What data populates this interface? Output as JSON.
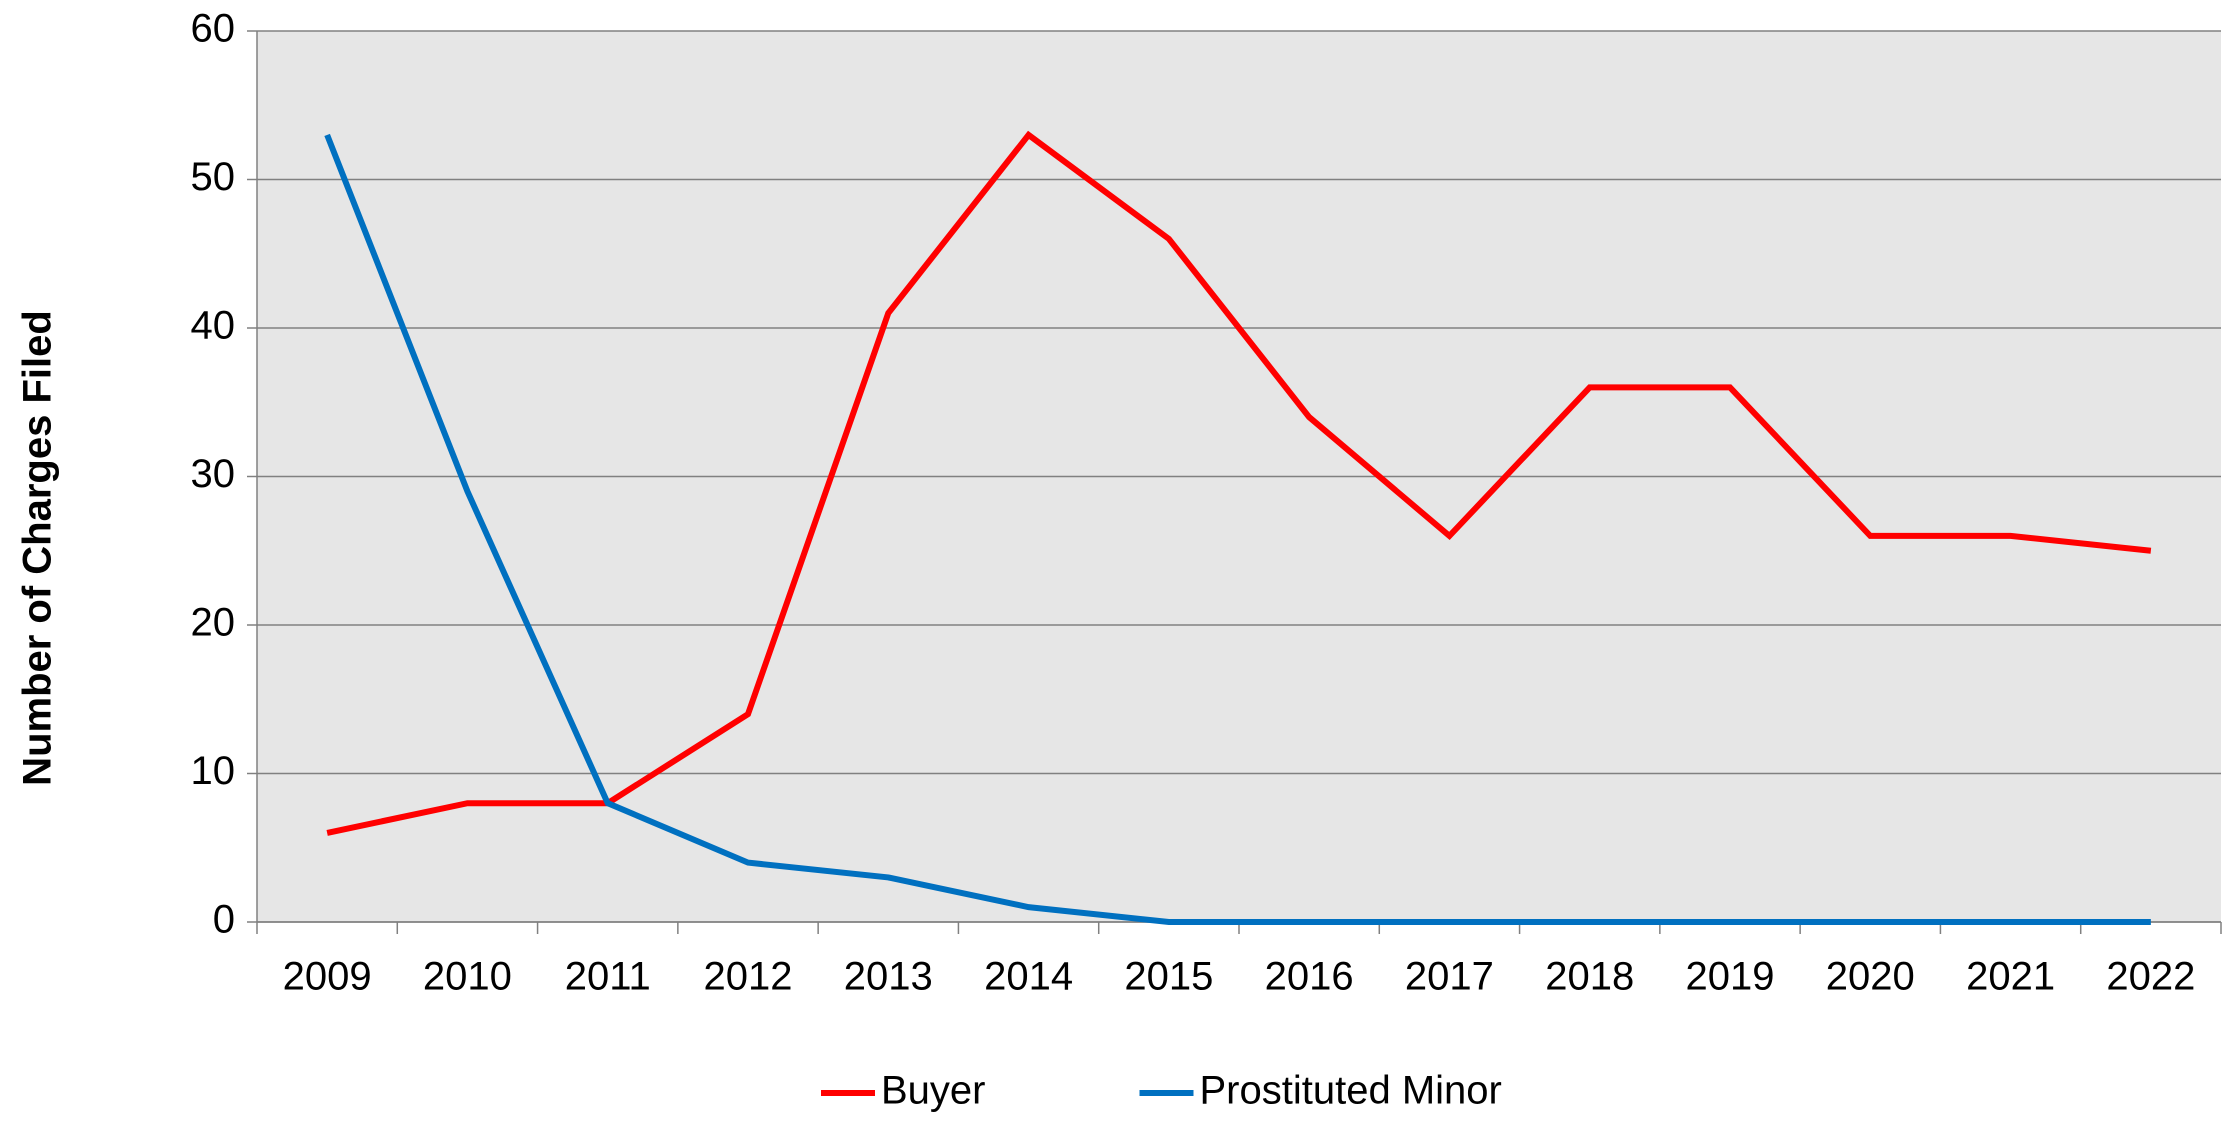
{
  "chart_data": {
    "type": "line",
    "y_label": "Number of Charges Filed",
    "categories": [
      "2009",
      "2010",
      "2011",
      "2012",
      "2013",
      "2014",
      "2015",
      "2016",
      "2017",
      "2018",
      "2019",
      "2020",
      "2021",
      "2022"
    ],
    "series": [
      {
        "name": "Buyer",
        "color": "#ff0000",
        "values": [
          6,
          8,
          8,
          14,
          41,
          53,
          46,
          34,
          26,
          36,
          36,
          26,
          26,
          25
        ]
      },
      {
        "name": "Prostituted Minor",
        "color": "#0070c0",
        "values": [
          53,
          29,
          8,
          4,
          3,
          1,
          0,
          0,
          0,
          0,
          0,
          0,
          0,
          0
        ]
      }
    ],
    "ylim": [
      0,
      60
    ],
    "yticks": [
      0,
      10,
      20,
      30,
      40,
      50,
      60
    ],
    "grid": true,
    "legend": "bottom"
  }
}
